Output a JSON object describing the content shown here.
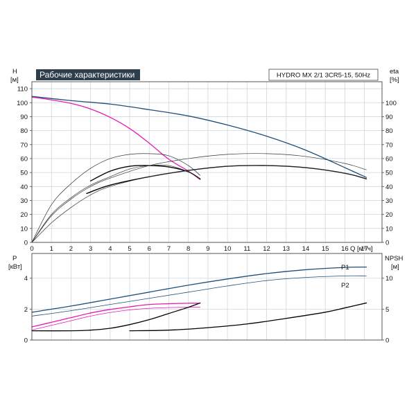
{
  "chart_data": [
    {
      "type": "line",
      "title": "Рабочие характеристики",
      "model": "HYDRO MX 2/1 3CR5-15, 50Hz",
      "ylabel_left": "H",
      "ylabel_left_unit": "[м]",
      "ylabel_right": "eta",
      "ylabel_right_unit": "[%]",
      "xlabel": "Q [м³/ч]",
      "xlim": [
        0,
        17.9
      ],
      "ylim_left": [
        0,
        115
      ],
      "ylim_right": [
        0,
        115
      ],
      "x_ticks": [
        0,
        1,
        2,
        3,
        4,
        5,
        6,
        7,
        8,
        9,
        10,
        11,
        12,
        13,
        14,
        15,
        16,
        17
      ],
      "y_ticks_left": [
        0,
        10,
        20,
        30,
        40,
        50,
        60,
        70,
        80,
        90,
        100,
        110
      ],
      "y_ticks_right": [
        0,
        10,
        20,
        30,
        40,
        50,
        60,
        70,
        80,
        90,
        100
      ],
      "grid": true,
      "series": [
        {
          "color": "#1f4e79",
          "width": 1.3,
          "axis": "left",
          "x": [
            0,
            2,
            4,
            6,
            8,
            10,
            12,
            14,
            16,
            17.1
          ],
          "y": [
            104.5,
            101.5,
            99,
            95,
            90.5,
            84,
            76,
            66,
            53.5,
            46.5
          ]
        },
        {
          "color": "#e619b4",
          "width": 1.3,
          "axis": "left",
          "x": [
            0,
            1,
            2,
            3,
            4,
            5,
            6,
            7,
            8,
            8.6
          ],
          "y": [
            104,
            102,
            99.5,
            95.5,
            89.5,
            81.5,
            71,
            59.5,
            51,
            45
          ]
        },
        {
          "color": "#000000",
          "width": 1.4,
          "axis": "right",
          "x": [
            3,
            4,
            5,
            6,
            7,
            8,
            8.6
          ],
          "y": [
            44,
            51,
            54.5,
            55,
            54,
            50.5,
            45.5
          ]
        },
        {
          "color": "#333333",
          "width": 0.7,
          "axis": "right",
          "x": [
            0,
            1,
            2,
            3,
            4,
            5,
            6,
            7,
            8,
            8.6
          ],
          "y": [
            0,
            27,
            42,
            53,
            60,
            63,
            63.5,
            62,
            55,
            48
          ]
        },
        {
          "color": "#333333",
          "width": 0.7,
          "axis": "right",
          "x": [
            0,
            1,
            2,
            3,
            4,
            5,
            6,
            7,
            8,
            8.6
          ],
          "y": [
            0,
            20,
            32,
            41,
            47,
            52.5,
            55,
            55,
            50.5,
            45.5
          ]
        },
        {
          "color": "#000000",
          "width": 1.4,
          "axis": "right",
          "x": [
            2.8,
            4,
            6,
            8,
            10,
            12,
            14,
            16,
            17.1
          ],
          "y": [
            35,
            41,
            47,
            51.5,
            54.5,
            55,
            53.5,
            49.5,
            45.5
          ]
        },
        {
          "color": "#333333",
          "width": 0.7,
          "axis": "right",
          "x": [
            0,
            1,
            2,
            3,
            4,
            6,
            8,
            10,
            12,
            14,
            16,
            17.1
          ],
          "y": [
            0,
            19,
            31,
            40,
            46,
            55,
            60,
            63,
            63.5,
            61.5,
            56.5,
            52
          ]
        },
        {
          "color": "#333333",
          "width": 0.7,
          "axis": "right",
          "x": [
            0,
            1,
            2,
            3,
            4,
            6,
            8,
            10,
            12,
            14,
            16,
            17.1
          ],
          "y": [
            0,
            14,
            25,
            34,
            40,
            47,
            51.5,
            54.5,
            55,
            53.5,
            49.5,
            45.5
          ]
        }
      ]
    },
    {
      "type": "line",
      "ylabel_left": "P",
      "ylabel_left_unit": "[кВт]",
      "ylabel_right": "NPSH",
      "ylabel_right_unit": "[м]",
      "xlim": [
        0,
        17.9
      ],
      "ylim_left": [
        0,
        5.6
      ],
      "ylim_right": [
        0,
        14
      ],
      "y_ticks_left": [
        0,
        2,
        4
      ],
      "y_ticks_right": [
        0,
        5,
        10
      ],
      "grid": true,
      "labels": {
        "p1": "P1",
        "p2": "P2"
      },
      "series": [
        {
          "name": "P1",
          "color": "#1f4e79",
          "width": 1.3,
          "axis": "left",
          "x": [
            0,
            2,
            4,
            6,
            8,
            10,
            12,
            14,
            16,
            17.1
          ],
          "y": [
            1.8,
            2.2,
            2.65,
            3.1,
            3.55,
            3.95,
            4.3,
            4.55,
            4.7,
            4.72
          ]
        },
        {
          "name": "P2",
          "color": "#1f4e79",
          "width": 0.8,
          "axis": "left",
          "x": [
            0,
            2,
            4,
            6,
            8,
            10,
            12,
            14,
            16,
            17.1
          ],
          "y": [
            1.55,
            1.9,
            2.3,
            2.7,
            3.1,
            3.5,
            3.85,
            4.05,
            4.15,
            4.15
          ]
        },
        {
          "color": "#e619b4",
          "width": 1.3,
          "axis": "left",
          "x": [
            0,
            1,
            2,
            3,
            4,
            5,
            6,
            7,
            8,
            8.6
          ],
          "y": [
            0.85,
            1.15,
            1.45,
            1.75,
            1.98,
            2.15,
            2.3,
            2.35,
            2.38,
            2.38
          ]
        },
        {
          "color": "#e619b4",
          "width": 0.8,
          "axis": "left",
          "x": [
            0,
            1,
            2,
            3,
            4,
            5,
            6,
            7,
            8,
            8.6
          ],
          "y": [
            0.65,
            0.95,
            1.25,
            1.55,
            1.78,
            1.95,
            2.05,
            2.1,
            2.12,
            2.12
          ]
        },
        {
          "color": "#000000",
          "width": 1.3,
          "axis": "right",
          "x": [
            0,
            2,
            3,
            4,
            5,
            6,
            7,
            8,
            8.6
          ],
          "y": [
            1.5,
            1.5,
            1.6,
            1.9,
            2.5,
            3.3,
            4.3,
            5.3,
            6
          ]
        },
        {
          "color": "#000000",
          "width": 1.3,
          "axis": "right",
          "x": [
            5,
            7,
            9,
            11,
            13,
            15,
            16,
            17.1
          ],
          "y": [
            1.5,
            1.6,
            2,
            2.6,
            3.5,
            4.5,
            5.2,
            6
          ]
        }
      ]
    }
  ]
}
